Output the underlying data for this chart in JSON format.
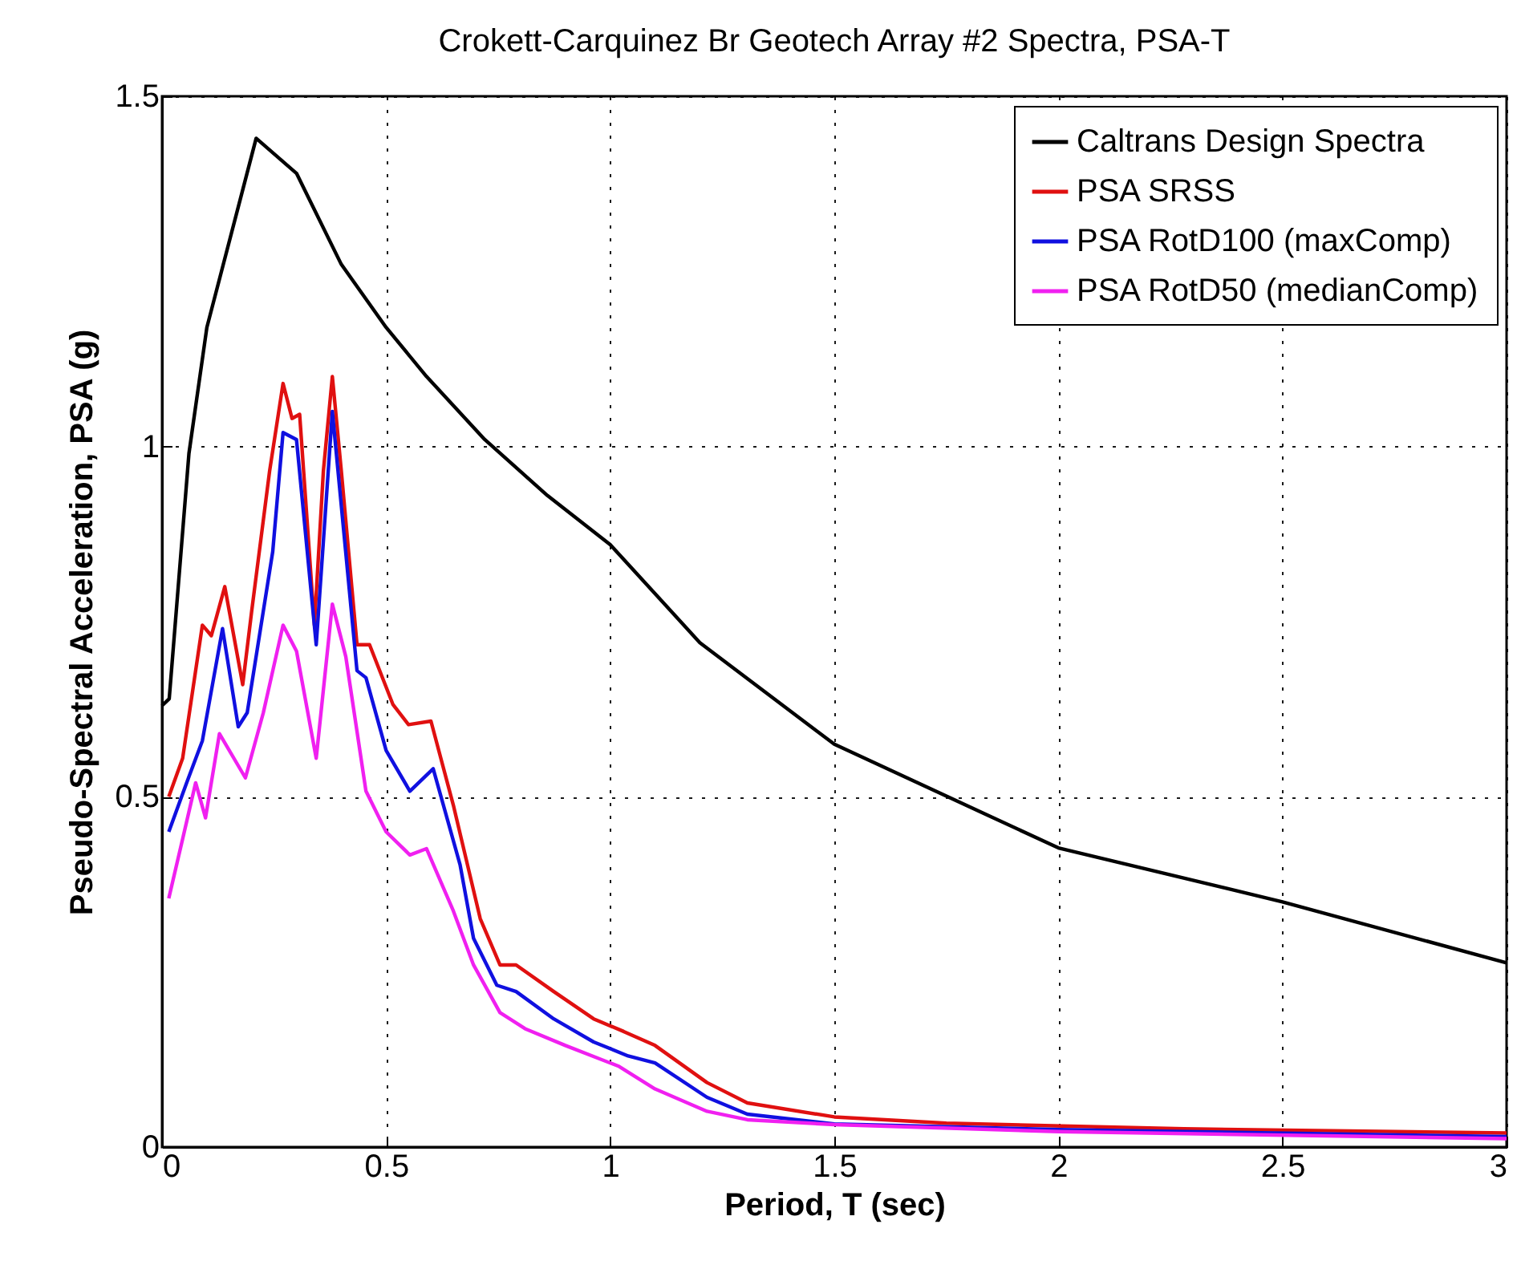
{
  "chart_data": {
    "type": "line",
    "title": "Crokett-Carquinez Br Geotech Array #2 Spectra, PSA-T",
    "xlabel": "Period, T (sec)",
    "ylabel": "Pseudo-Spectral Acceleration, PSA (g)",
    "xlim": [
      0,
      3
    ],
    "xticks": [
      0,
      0.5,
      1,
      1.5,
      2,
      2.5,
      3
    ],
    "ylim": [
      0,
      1.5
    ],
    "yticks": [
      0,
      0.5,
      1,
      1.5
    ],
    "grid": true,
    "legend": "top right",
    "line_style": "solid",
    "marker": "none",
    "series": [
      {
        "name": "Caltrans Design Spectra",
        "color": "#000000",
        "x": [
          0,
          0.016,
          0.06,
          0.1,
          0.21,
          0.3,
          0.4,
          0.5,
          0.59,
          0.72,
          0.86,
          1.0,
          1.2,
          1.5,
          2.0,
          2.5,
          3.0
        ],
        "values": [
          0.63,
          0.64,
          0.99,
          1.17,
          1.44,
          1.39,
          1.26,
          1.17,
          1.1,
          1.01,
          0.93,
          0.86,
          0.72,
          0.575,
          0.427,
          0.35,
          0.263
        ]
      },
      {
        "name": "PSA SRSS",
        "color": "#e01010",
        "x": [
          0.015,
          0.046,
          0.09,
          0.11,
          0.14,
          0.18,
          0.2,
          0.24,
          0.27,
          0.29,
          0.307,
          0.34,
          0.36,
          0.38,
          0.4,
          0.435,
          0.463,
          0.515,
          0.55,
          0.6,
          0.65,
          0.71,
          0.754,
          0.79,
          0.874,
          0.963,
          1.03,
          1.1,
          1.216,
          1.306,
          1.5,
          1.75,
          2.28,
          3.0
        ],
        "values": [
          0.5,
          0.555,
          0.745,
          0.73,
          0.8,
          0.66,
          0.765,
          0.965,
          1.09,
          1.04,
          1.046,
          0.745,
          0.965,
          1.1,
          0.965,
          0.717,
          0.717,
          0.632,
          0.603,
          0.608,
          0.488,
          0.326,
          0.26,
          0.26,
          0.222,
          0.183,
          0.165,
          0.145,
          0.092,
          0.063,
          0.043,
          0.034,
          0.026,
          0.02
        ]
      },
      {
        "name": "PSA RotD100 (maxComp)",
        "color": "#1010e0",
        "x": [
          0.015,
          0.055,
          0.09,
          0.135,
          0.17,
          0.19,
          0.247,
          0.27,
          0.3,
          0.344,
          0.38,
          0.435,
          0.455,
          0.5,
          0.553,
          0.605,
          0.665,
          0.695,
          0.747,
          0.79,
          0.874,
          0.963,
          1.04,
          1.1,
          1.216,
          1.306,
          1.5,
          2.0,
          3.0
        ],
        "values": [
          0.45,
          0.52,
          0.58,
          0.74,
          0.6,
          0.62,
          0.85,
          1.02,
          1.01,
          0.717,
          1.05,
          0.68,
          0.67,
          0.566,
          0.508,
          0.54,
          0.403,
          0.298,
          0.231,
          0.222,
          0.183,
          0.15,
          0.13,
          0.12,
          0.071,
          0.047,
          0.033,
          0.025,
          0.015
        ]
      },
      {
        "name": "PSA RotD50 (medianComp)",
        "color": "#f020f0",
        "x": [
          0.015,
          0.046,
          0.075,
          0.097,
          0.128,
          0.186,
          0.226,
          0.27,
          0.3,
          0.344,
          0.38,
          0.41,
          0.455,
          0.5,
          0.553,
          0.59,
          0.65,
          0.695,
          0.754,
          0.81,
          0.9,
          1.02,
          1.1,
          1.216,
          1.306,
          1.5,
          2.0,
          3.0
        ],
        "values": [
          0.355,
          0.44,
          0.52,
          0.47,
          0.59,
          0.527,
          0.62,
          0.745,
          0.708,
          0.555,
          0.775,
          0.7,
          0.508,
          0.45,
          0.417,
          0.426,
          0.337,
          0.26,
          0.192,
          0.169,
          0.145,
          0.115,
          0.083,
          0.051,
          0.039,
          0.032,
          0.022,
          0.012
        ]
      }
    ]
  }
}
